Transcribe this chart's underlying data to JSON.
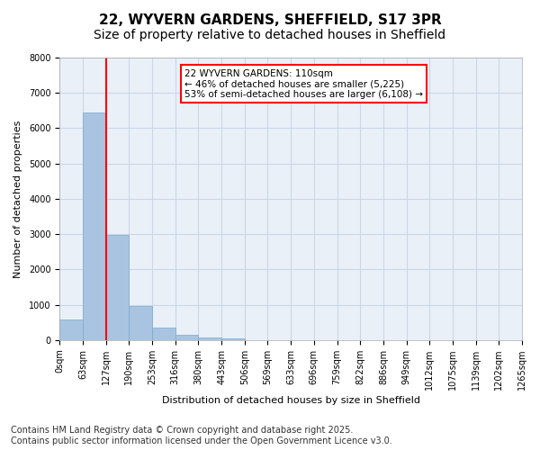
{
  "title_line1": "22, WYVERN GARDENS, SHEFFIELD, S17 3PR",
  "title_line2": "Size of property relative to detached houses in Sheffield",
  "xlabel": "Distribution of detached houses by size in Sheffield",
  "ylabel": "Number of detached properties",
  "bar_values": [
    570,
    6450,
    2980,
    960,
    360,
    160,
    80,
    50,
    0,
    0,
    0,
    0,
    0,
    0,
    0,
    0,
    0,
    0,
    0,
    0
  ],
  "bar_labels": [
    "0sqm",
    "63sqm",
    "127sqm",
    "190sqm",
    "253sqm",
    "316sqm",
    "380sqm",
    "443sqm",
    "506sqm",
    "569sqm",
    "633sqm",
    "696sqm",
    "759sqm",
    "822sqm",
    "886sqm",
    "949sqm",
    "1012sqm",
    "1075sqm",
    "1139sqm",
    "1202sqm",
    "1265sqm"
  ],
  "ylim": [
    0,
    8000
  ],
  "yticks": [
    0,
    1000,
    2000,
    3000,
    4000,
    5000,
    6000,
    7000,
    8000
  ],
  "bar_color": "#a8c4e0",
  "bar_edge_color": "#7aaacf",
  "grid_color": "#c8d8e8",
  "background_color": "#eaf0f8",
  "annotation_text": "22 WYVERN GARDENS: 110sqm\n← 46% of detached houses are smaller (5,225)\n53% of semi-detached houses are larger (6,108) →",
  "vline_x": 1.5,
  "vline_color": "red",
  "annotation_box_color": "white",
  "annotation_box_edge": "red",
  "footnote_line1": "Contains HM Land Registry data © Crown copyright and database right 2025.",
  "footnote_line2": "Contains public sector information licensed under the Open Government Licence v3.0.",
  "title_fontsize": 11,
  "subtitle_fontsize": 10,
  "label_fontsize": 8,
  "tick_fontsize": 7,
  "footnote_fontsize": 7
}
